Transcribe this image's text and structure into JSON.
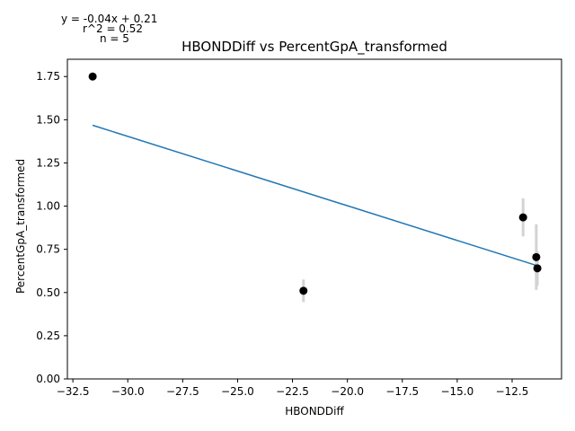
{
  "chart_data": {
    "type": "scatter",
    "title": "HBONDDiff vs PercentGpA_transformed",
    "xlabel": "HBONDDiff",
    "ylabel": "PercentGpA_transformed",
    "xlim": [
      -32.75,
      -10.25
    ],
    "ylim": [
      0.0,
      1.85
    ],
    "xticks": [
      -32.5,
      -30.0,
      -27.5,
      -25.0,
      -22.5,
      -20.0,
      -17.5,
      -15.0,
      -12.5
    ],
    "xtick_labels": [
      "−32.5",
      "−30.0",
      "−27.5",
      "−25.0",
      "−22.5",
      "−20.0",
      "−17.5",
      "−15.0",
      "−12.5"
    ],
    "yticks": [
      0.0,
      0.25,
      0.5,
      0.75,
      1.0,
      1.25,
      1.5,
      1.75
    ],
    "ytick_labels": [
      "0.00",
      "0.25",
      "0.50",
      "0.75",
      "1.00",
      "1.25",
      "1.50",
      "1.75"
    ],
    "grid": false,
    "points": [
      {
        "x": -31.6,
        "y": 1.75,
        "err": 0.0
      },
      {
        "x": -22.0,
        "y": 0.51,
        "err": 0.065
      },
      {
        "x": -12.0,
        "y": 0.935,
        "err": 0.11
      },
      {
        "x": -11.4,
        "y": 0.705,
        "err": 0.19
      },
      {
        "x": -11.35,
        "y": 0.64,
        "err": 0.1
      }
    ],
    "fit_line": {
      "slope": -0.04,
      "intercept": 0.21,
      "x_range": [
        -31.6,
        -11.35
      ],
      "y_range": [
        1.468,
        0.655
      ]
    },
    "annotations": {
      "equation": "y = -0.04x + 0.21",
      "r_squared": "r^2 = 0.52",
      "n": "n = 5"
    },
    "colors": {
      "points": "#000000",
      "fit_line": "#1f77b4",
      "error_bars": "#d3d3d3",
      "axes": "#000000"
    }
  }
}
